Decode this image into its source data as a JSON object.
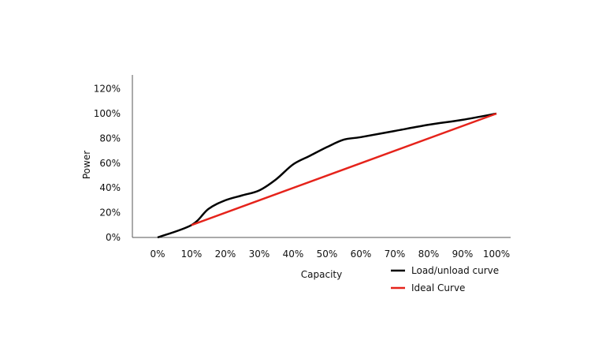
{
  "chart_data": {
    "type": "line",
    "title": "",
    "xlabel": "Capacity",
    "ylabel": "Power",
    "categories": [
      "0%",
      "10%",
      "20%",
      "30%",
      "40%",
      "50%",
      "60%",
      "70%",
      "80%",
      "90%",
      "100%"
    ],
    "yticks": [
      "0%",
      "20%",
      "40%",
      "60%",
      "80%",
      "100%",
      "120%"
    ],
    "ylim": [
      0,
      130
    ],
    "xlim": [
      -7.5,
      104
    ],
    "grid": false,
    "legend_position": "bottom-right",
    "series": [
      {
        "name": "Load/unload curve",
        "color": "#000000",
        "x": [
          0,
          10,
          15,
          20,
          25,
          30,
          35,
          40,
          45,
          50,
          55,
          60,
          70,
          80,
          90,
          100
        ],
        "y": [
          0,
          10,
          23,
          30,
          34,
          38,
          47,
          59,
          66,
          73,
          79,
          81,
          86,
          91,
          95,
          100
        ]
      },
      {
        "name": "Ideal Curve",
        "color": "#e5231b",
        "x": [
          10,
          100
        ],
        "y": [
          10,
          100
        ]
      }
    ]
  }
}
